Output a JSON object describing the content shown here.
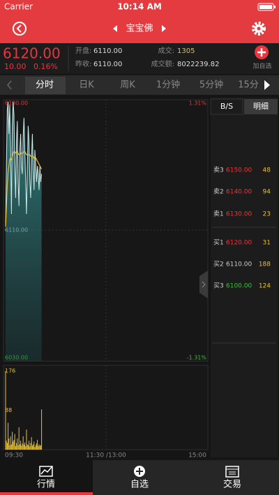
{
  "status_bar": {
    "carrier": "Carrier",
    "time": "10:14 AM"
  },
  "header": {
    "title": "宝宝佛"
  },
  "quote": {
    "price": "6120.00",
    "change": "10.00",
    "change_pct": "0.16%",
    "open_label": "开盘:",
    "open": "6110.00",
    "prev_close_label": "昨收:",
    "prev_close": "6110.00",
    "volume_label": "成交:",
    "volume": "1305",
    "turnover_label": "成交额:",
    "turnover": "8022239.82",
    "add_watch": "加自选"
  },
  "tabs": [
    "分时",
    "日K",
    "周K",
    "1分钟",
    "5分钟",
    "15分"
  ],
  "chart": {
    "ylim": [
      6030,
      6190
    ],
    "price_ticks": [
      {
        "value": 6190,
        "label": "6190.00"
      },
      {
        "value": 6110,
        "label": "6110.00"
      },
      {
        "value": 6030,
        "label": "6030.00"
      }
    ],
    "pct_labels": [
      "1.31%",
      "-1.31%"
    ],
    "volume_ylim": [
      0,
      176
    ],
    "volume_ticks": [
      176,
      88
    ],
    "times": [
      "09:30",
      "11:30 /13:00",
      "15:00"
    ],
    "price": [
      6112,
      6150,
      6185,
      6190,
      6170,
      6188,
      6160,
      6120,
      6175,
      6190,
      6182,
      6150,
      6130,
      6165,
      6178,
      6140,
      6125,
      6160,
      6170,
      6150,
      6145,
      6168,
      6180,
      6160,
      6140,
      6120,
      6150,
      6175,
      6165,
      6140,
      6130,
      6155,
      6170,
      6150,
      6135,
      6160,
      6150,
      6140,
      6150,
      6145,
      6135,
      6150,
      6140,
      6145
    ],
    "avg": [
      6112,
      6125,
      6138,
      6146,
      6150,
      6154,
      6155,
      6154,
      6156,
      6158,
      6159,
      6159,
      6158,
      6158,
      6159,
      6158,
      6157,
      6157,
      6158,
      6158,
      6158,
      6158,
      6159,
      6159,
      6158,
      6157,
      6157,
      6157,
      6157,
      6157,
      6156,
      6156,
      6156,
      6156,
      6155,
      6155,
      6155,
      6154,
      6153,
      6152,
      6151,
      6150,
      6149,
      6148
    ],
    "volume": [
      176,
      20,
      15,
      60,
      25,
      10,
      30,
      12,
      40,
      18,
      22,
      35,
      8,
      15,
      25,
      10,
      50,
      12,
      20,
      9,
      14,
      30,
      11,
      16,
      8,
      45,
      12,
      10,
      20,
      7,
      15,
      28,
      9,
      12,
      18,
      6,
      10,
      14,
      22,
      8,
      12,
      9,
      10,
      90
    ]
  },
  "side_tabs": [
    "B/S",
    "明细"
  ],
  "order_book": [
    {
      "side": "卖3",
      "price": "6150.00",
      "qty": 48
    },
    {
      "side": "卖2",
      "price": "6140.00",
      "qty": 94
    },
    {
      "side": "卖1",
      "price": "6130.00",
      "qty": 23
    },
    {
      "side": "买1",
      "price": "6120.00",
      "qty": 31
    },
    {
      "side": "买2",
      "price": "6110.00",
      "qty": 188
    },
    {
      "side": "买3",
      "price": "6100.00",
      "qty": 124
    }
  ],
  "bottom_tabs": [
    "行情",
    "自选",
    "交易"
  ]
}
